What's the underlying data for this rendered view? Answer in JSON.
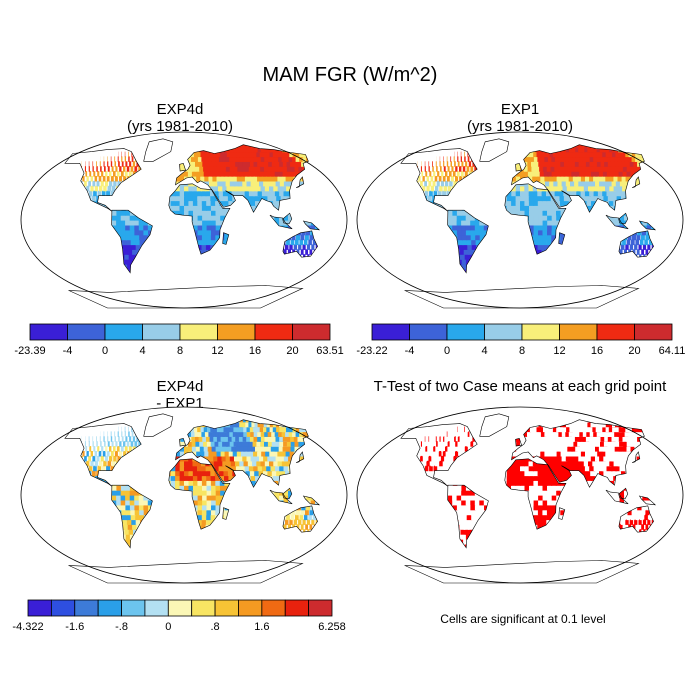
{
  "title": "MAM FGR (W/m^2)",
  "panels": [
    {
      "id": "exp4d",
      "title_line1": "EXP4d",
      "title_line2": "(yrs 1981-2010)"
    },
    {
      "id": "exp1",
      "title_line1": "EXP1",
      "title_line2": "(yrs 1981-2010)"
    },
    {
      "id": "diff",
      "title_line1": "EXP4d",
      "title_line2": "- EXP1"
    },
    {
      "id": "ttest",
      "title_line1": "T-Test of two Case means at each grid point",
      "title_line2": ""
    }
  ],
  "colorbars": {
    "exp4d": {
      "colors": [
        "#3a1fd6",
        "#3d63d8",
        "#29a8ec",
        "#98cde8",
        "#f8ef7a",
        "#f49e22",
        "#ef2a12",
        "#cd2b2e"
      ],
      "labels": [
        "-23.39",
        "-4",
        "0",
        "4",
        "8",
        "12",
        "16",
        "20",
        "63.51"
      ]
    },
    "exp1": {
      "colors": [
        "#3a1fd6",
        "#3d63d8",
        "#29a8ec",
        "#98cde8",
        "#f8ef7a",
        "#f49e22",
        "#ef2a12",
        "#cd2b2e"
      ],
      "labels": [
        "-23.22",
        "-4",
        "0",
        "4",
        "8",
        "12",
        "16",
        "20",
        "64.11"
      ]
    },
    "diff": {
      "colors": [
        "#3a1fd6",
        "#2e4fe0",
        "#3d7bd8",
        "#2a9fe8",
        "#6cc4ee",
        "#b3e0f2",
        "#fbf7b6",
        "#f8e563",
        "#f7c335",
        "#f59a22",
        "#f06a13",
        "#e8220e",
        "#cd2b2e"
      ],
      "labels": [
        "-4.322",
        "",
        "-1.6",
        "",
        "-.8",
        "",
        "0",
        "",
        ".8",
        "",
        "1.6",
        "",
        "",
        "6.258"
      ]
    }
  },
  "footnote": "Cells are significant at 0.1 level"
}
